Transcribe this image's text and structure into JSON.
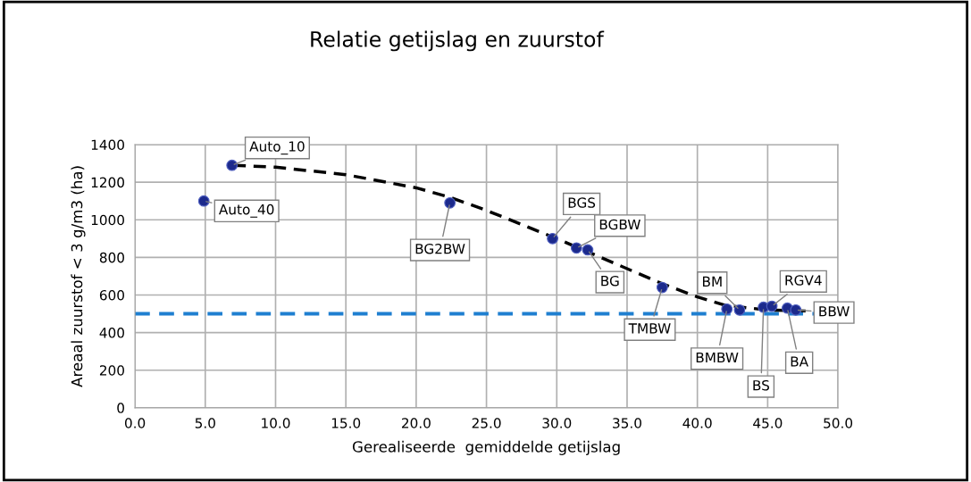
{
  "chart_data": {
    "type": "scatter",
    "title": "Relatie getijslag en zuurstof",
    "xlabel": "Gerealiseerde  gemiddelde getijslag",
    "ylabel": "Areaal zuurstof < 3 g/m3 (ha)",
    "xlim": [
      0,
      50
    ],
    "ylim": [
      0,
      1400
    ],
    "xticks": [
      {
        "value": 0,
        "label": "0.0"
      },
      {
        "value": 5,
        "label": "5.0"
      },
      {
        "value": 10,
        "label": "10.0"
      },
      {
        "value": 15,
        "label": "15.0"
      },
      {
        "value": 20,
        "label": "20.0"
      },
      {
        "value": 25,
        "label": "25.0"
      },
      {
        "value": 30,
        "label": "30.0"
      },
      {
        "value": 35,
        "label": "35.0"
      },
      {
        "value": 40,
        "label": "40.0"
      },
      {
        "value": 45,
        "label": "45.0"
      },
      {
        "value": 50,
        "label": "50.0"
      }
    ],
    "yticks": [
      0,
      200,
      400,
      600,
      800,
      1000,
      1200,
      1400
    ],
    "grid": true,
    "marker": "circle",
    "series": [
      {
        "color": "#1c2a8c",
        "x": [
          6.9,
          4.9,
          22.4,
          29.7,
          31.4,
          32.2,
          37.5,
          42.1,
          43.0,
          44.7,
          45.3,
          46.4,
          47.0
        ],
        "values": [
          1290,
          1100,
          1090,
          900,
          850,
          840,
          640,
          525,
          520,
          535,
          540,
          530,
          520
        ]
      },
      {
        "type": "line",
        "color": "#000000",
        "line_style": "dashed",
        "marker": "none",
        "x": [
          7,
          10,
          15,
          20,
          22.4,
          25,
          30,
          35,
          37.5,
          40,
          42,
          45,
          47.7
        ],
        "values": [
          1290,
          1280,
          1240,
          1170,
          1120,
          1050,
          900,
          740,
          660,
          590,
          545,
          520,
          515
        ]
      }
    ],
    "ref_lines": [
      {
        "axis": "y",
        "value": 500,
        "color": "#1f7fd0",
        "line_style": "dashed"
      }
    ],
    "annotations": [
      {
        "text": "Auto_10",
        "x": 6.9,
        "y": 1290
      },
      {
        "text": "Auto_40",
        "x": 4.9,
        "y": 1100
      },
      {
        "text": "BG2BW",
        "x": 22.4,
        "y": 1090
      },
      {
        "text": "BGS",
        "x": 29.7,
        "y": 900
      },
      {
        "text": "BGBW",
        "x": 31.4,
        "y": 850
      },
      {
        "text": "BG",
        "x": 32.2,
        "y": 840
      },
      {
        "text": "TMBW",
        "x": 37.5,
        "y": 640
      },
      {
        "text": "BMBW",
        "x": 42.1,
        "y": 525
      },
      {
        "text": "BM",
        "x": 43.0,
        "y": 520
      },
      {
        "text": "BS",
        "x": 44.7,
        "y": 535
      },
      {
        "text": "RGV4",
        "x": 45.3,
        "y": 540
      },
      {
        "text": "BA",
        "x": 46.4,
        "y": 530
      },
      {
        "text": "BBW",
        "x": 47.0,
        "y": 520
      }
    ]
  }
}
